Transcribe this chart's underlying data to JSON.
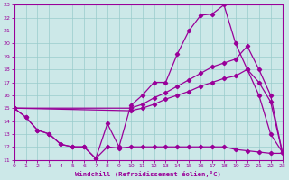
{
  "xlabel": "Windchill (Refroidissement éolien,°C)",
  "bg_color": "#cce8e8",
  "grid_color": "#99cccc",
  "line_color": "#990099",
  "xlim": [
    0,
    23
  ],
  "ylim": [
    11,
    23
  ],
  "xticks": [
    0,
    1,
    2,
    3,
    4,
    5,
    6,
    7,
    8,
    9,
    10,
    11,
    12,
    13,
    14,
    15,
    16,
    17,
    18,
    19,
    20,
    21,
    22,
    23
  ],
  "yticks": [
    11,
    12,
    13,
    14,
    15,
    16,
    17,
    18,
    19,
    20,
    21,
    22,
    23
  ],
  "line_spike_x": [
    0,
    1,
    2,
    3,
    4,
    5,
    6,
    7,
    8,
    9,
    10,
    11,
    12,
    13,
    14,
    15,
    16,
    17,
    18,
    19,
    20,
    21,
    22,
    23
  ],
  "line_spike_y": [
    15.0,
    14.3,
    13.3,
    13.0,
    12.2,
    12.0,
    12.0,
    11.1,
    13.8,
    12.0,
    15.2,
    16.0,
    17.0,
    17.0,
    19.2,
    21.0,
    22.2,
    22.3,
    23.0,
    20.0,
    18.0,
    16.0,
    13.0,
    11.6
  ],
  "line_upper_x": [
    0,
    10,
    11,
    12,
    13,
    14,
    15,
    16,
    17,
    18,
    19,
    20,
    21,
    22,
    23
  ],
  "line_upper_y": [
    15.0,
    15.0,
    15.3,
    15.8,
    16.2,
    16.7,
    17.2,
    17.7,
    18.2,
    18.5,
    18.8,
    19.8,
    18.0,
    16.0,
    11.6
  ],
  "line_mid_x": [
    0,
    10,
    11,
    12,
    13,
    14,
    15,
    16,
    17,
    18,
    19,
    20,
    21,
    22,
    23
  ],
  "line_mid_y": [
    15.0,
    14.8,
    15.0,
    15.3,
    15.7,
    16.0,
    16.3,
    16.7,
    17.0,
    17.3,
    17.5,
    18.0,
    17.0,
    15.5,
    11.6
  ],
  "line_low_x": [
    0,
    1,
    2,
    3,
    4,
    5,
    6,
    7,
    8,
    9,
    10,
    11,
    12,
    13,
    14,
    15,
    16,
    17,
    18,
    19,
    20,
    21,
    22,
    23
  ],
  "line_low_y": [
    15.0,
    14.3,
    13.3,
    13.0,
    12.2,
    12.0,
    12.0,
    11.1,
    12.0,
    11.9,
    12.0,
    12.0,
    12.0,
    12.0,
    12.0,
    12.0,
    12.0,
    12.0,
    12.0,
    11.8,
    11.7,
    11.6,
    11.5,
    11.5
  ]
}
